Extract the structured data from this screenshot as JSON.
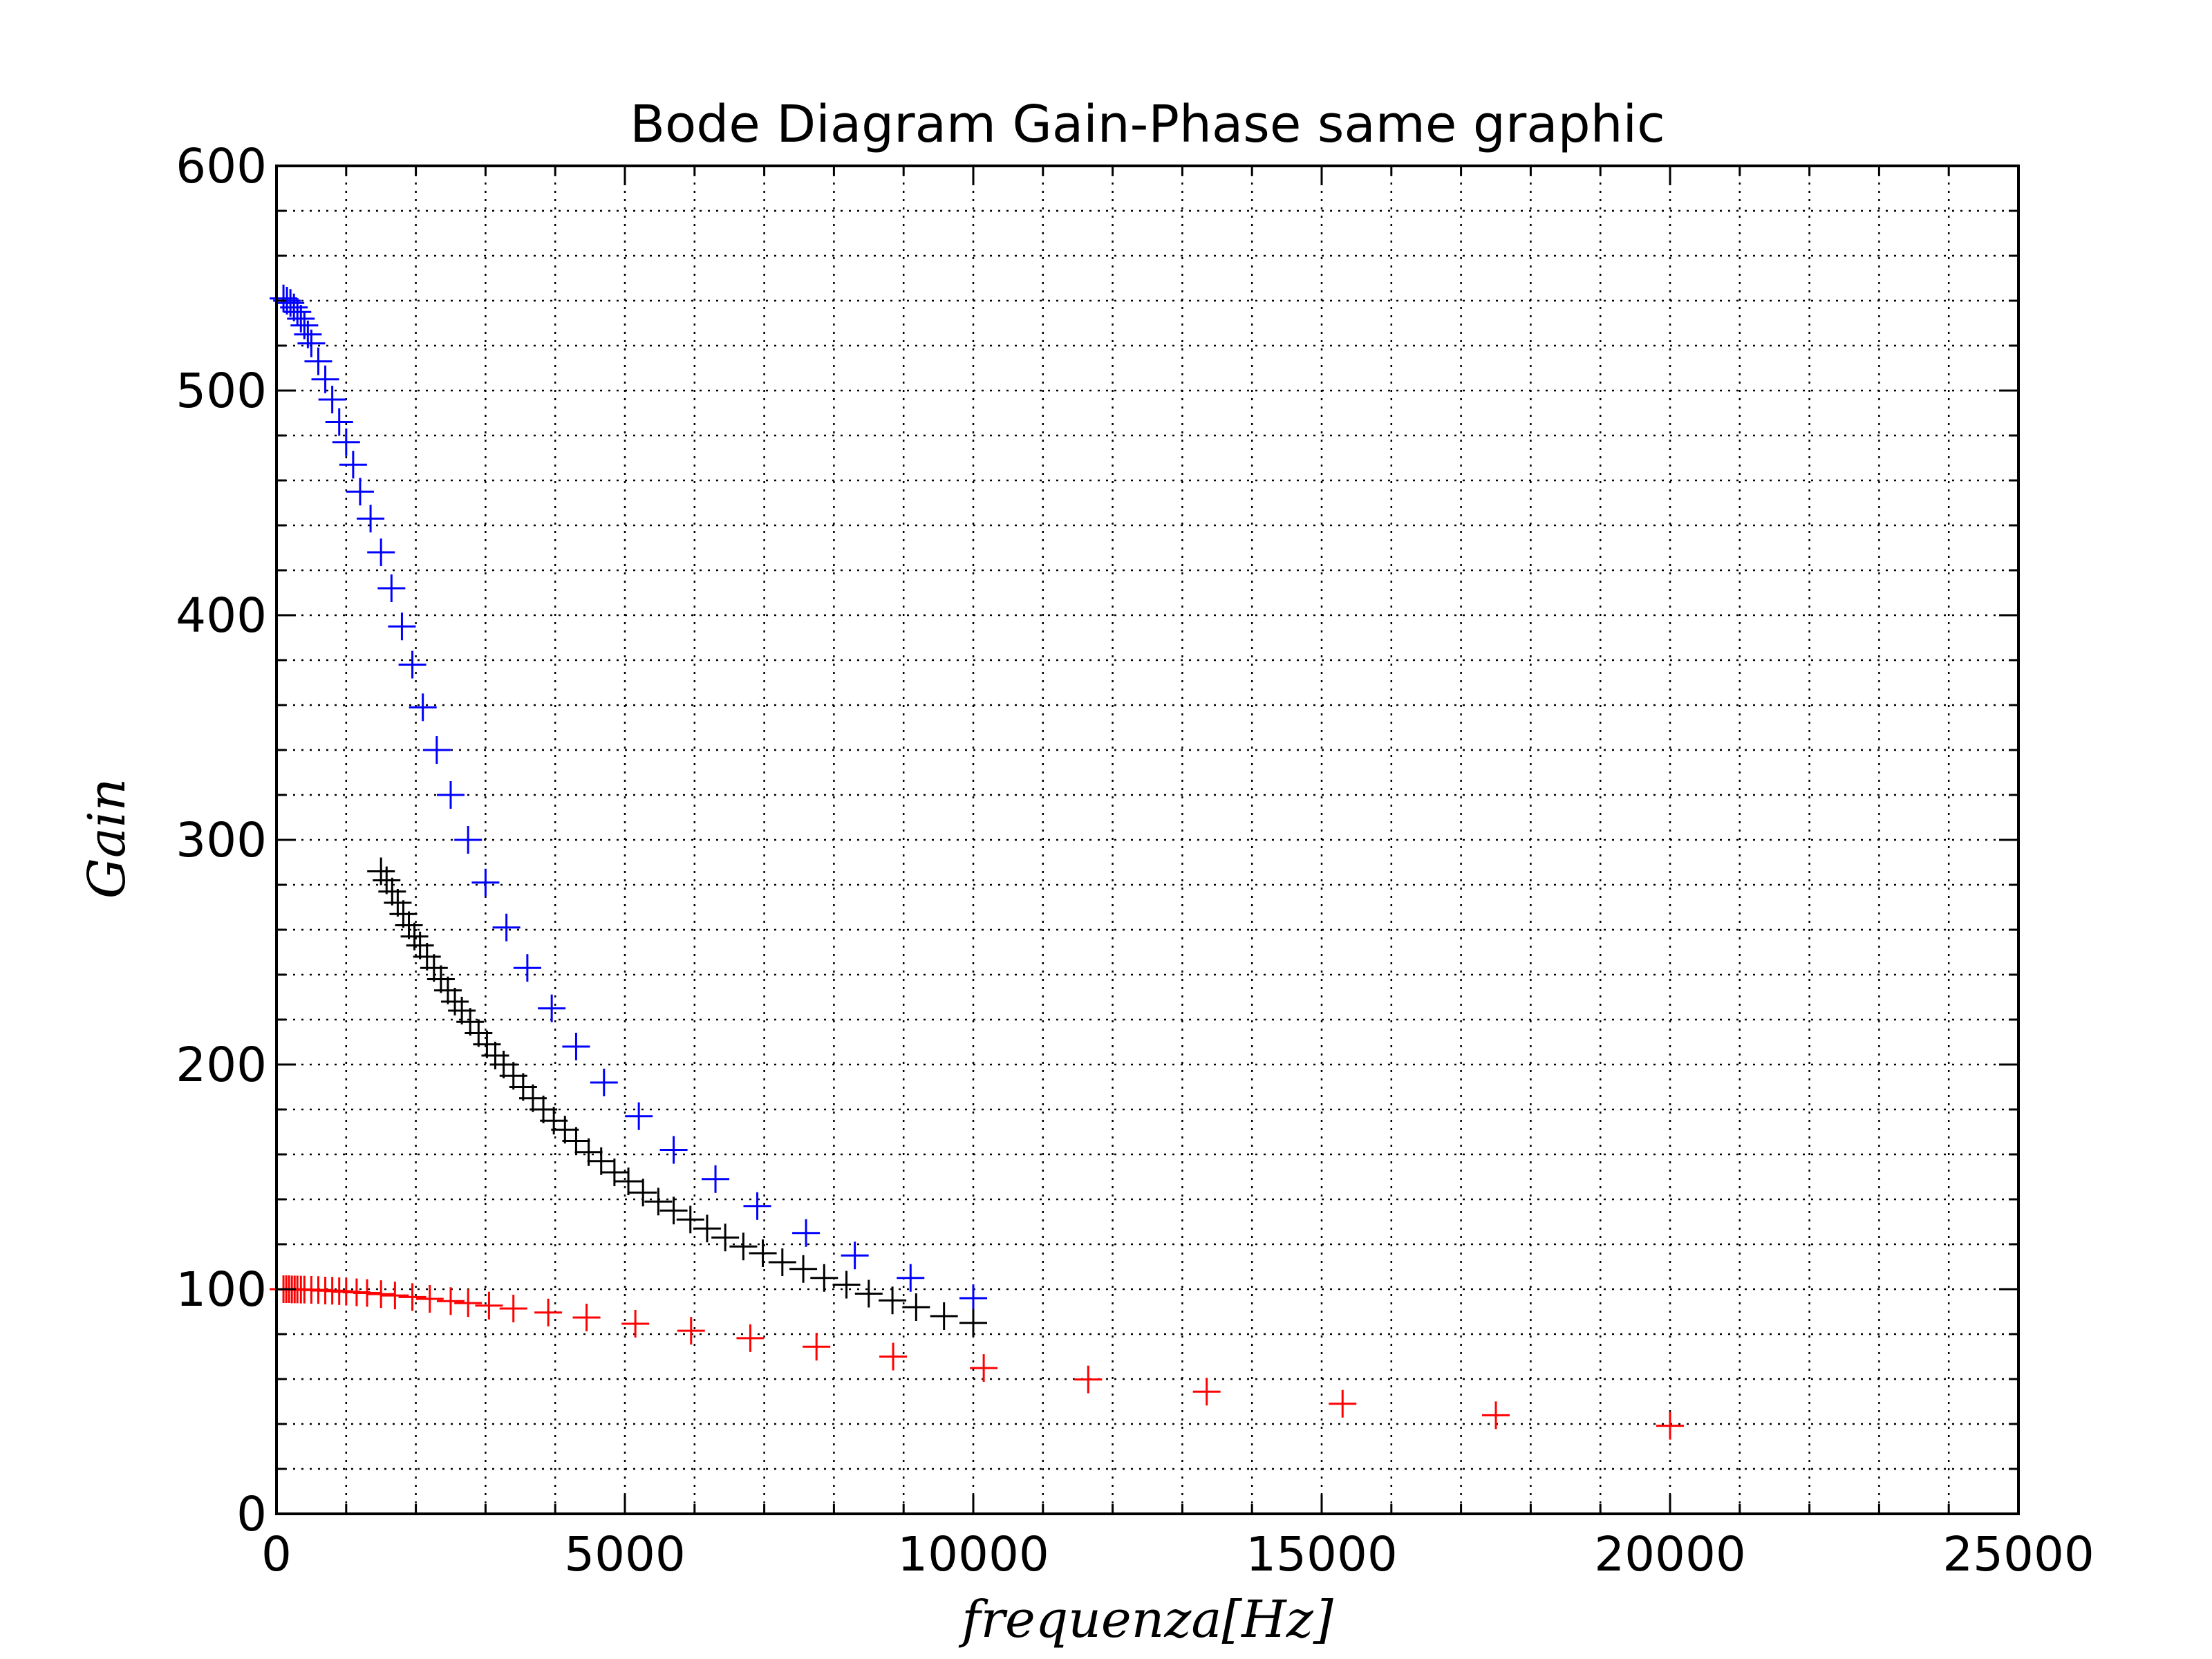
{
  "chart_data": {
    "type": "scatter",
    "title": "Bode Diagram Gain-Phase same graphic",
    "xlabel": "frequenza[Hz]",
    "ylabel": "Gain",
    "xlim": [
      0,
      25000
    ],
    "ylim": [
      0,
      600
    ],
    "grid": true,
    "grid_style": "dotted",
    "marker": "+",
    "x_ticks": [
      "0",
      "5000",
      "10000",
      "15000",
      "20000",
      "25000"
    ],
    "y_ticks": [
      "0",
      "100",
      "200",
      "300",
      "400",
      "500",
      "600"
    ],
    "series": [
      {
        "color": "#0000ff",
        "x": [
          100,
          150,
          200,
          250,
          300,
          350,
          400,
          450,
          500,
          600,
          700,
          800,
          900,
          1000,
          1100,
          1200,
          1350,
          1500,
          1650,
          1800,
          1950,
          2100,
          2300,
          2500,
          2750,
          3000,
          3300,
          3600,
          3950,
          4300,
          4700,
          5200,
          5700,
          6300,
          6900,
          7600,
          8300,
          9100,
          10000
        ],
        "y": [
          541,
          540,
          539,
          537,
          535,
          532,
          529,
          525,
          521,
          513,
          505,
          496,
          486,
          477,
          467,
          455,
          443,
          428,
          412,
          395,
          378,
          359,
          340,
          320,
          300,
          281,
          261,
          243,
          225,
          208,
          192,
          177,
          162,
          149,
          137,
          125,
          115,
          105,
          96
        ]
      },
      {
        "color": "#000000",
        "x": [
          1500,
          1580,
          1660,
          1740,
          1820,
          1900,
          1980,
          2060,
          2160,
          2260,
          2360,
          2460,
          2560,
          2660,
          2780,
          2900,
          3020,
          3140,
          3260,
          3400,
          3540,
          3680,
          3830,
          3980,
          4140,
          4300,
          4480,
          4660,
          4850,
          5050,
          5260,
          5480,
          5700,
          5940,
          6180,
          6440,
          6700,
          6980,
          7260,
          7560,
          7860,
          8180,
          8500,
          8840,
          9180,
          9580,
          10000
        ],
        "y": [
          286,
          282,
          277,
          272,
          267,
          262,
          257,
          253,
          248,
          243,
          238,
          233,
          228,
          224,
          219,
          214,
          209,
          204,
          200,
          195,
          190,
          185,
          180,
          175,
          171,
          166,
          161,
          157,
          152,
          148,
          143,
          139,
          135,
          131,
          127,
          123,
          119,
          116,
          112,
          109,
          105,
          102,
          98,
          95,
          92,
          88,
          85
        ]
      },
      {
        "color": "#ff0000",
        "x": [
          100,
          140,
          180,
          220,
          260,
          300,
          350,
          400,
          500,
          600,
          700,
          800,
          900,
          1000,
          1150,
          1300,
          1500,
          1700,
          1950,
          2200,
          2500,
          2750,
          3050,
          3400,
          3900,
          4450,
          5150,
          5950,
          6800,
          7750,
          8850,
          10150,
          11650,
          13350,
          15300,
          17500,
          20000
        ],
        "y": [
          100,
          100,
          100,
          99.9,
          99.9,
          99.9,
          99.8,
          99.8,
          99.7,
          99.6,
          99.4,
          99.3,
          99.1,
          98.9,
          98.6,
          98.3,
          97.8,
          97.2,
          96.5,
          95.7,
          94.7,
          93.8,
          92.7,
          91.4,
          89.6,
          87.4,
          84.6,
          81.5,
          78.2,
          74.4,
          70.0,
          64.9,
          59.8,
          54.4,
          49.0,
          43.9,
          39.2
        ]
      }
    ]
  }
}
